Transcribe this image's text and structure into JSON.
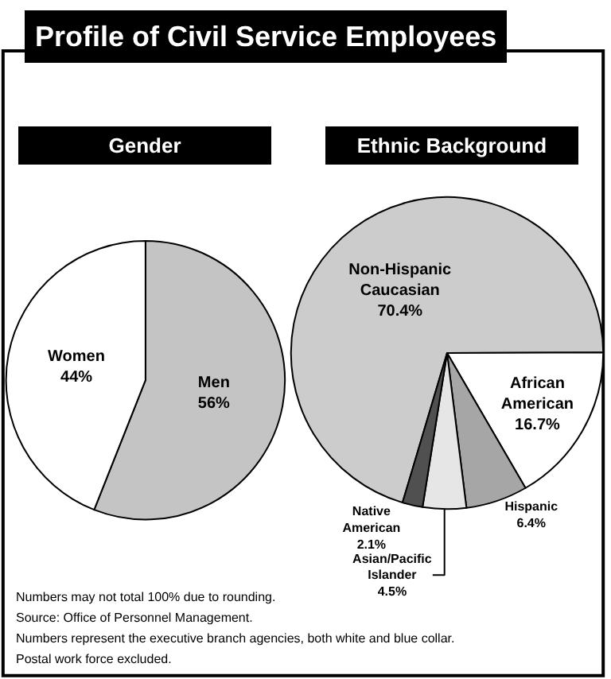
{
  "chart_data": [
    {
      "type": "other",
      "title": "Profile of Civil Service Employees",
      "annotations": [
        "Numbers may not total 100% due to rounding.",
        "Source: Office of Personnel Management.",
        "Numbers represent the executive branch agencies, both white and blue collar.",
        "Postal work force excluded."
      ]
    },
    {
      "type": "pie",
      "title": "Gender",
      "categories": [
        "Men",
        "Women"
      ],
      "values": [
        56,
        44
      ],
      "colors": [
        "#c4c4c4",
        "#ffffff"
      ],
      "value_labels": [
        "56%",
        "44%"
      ]
    },
    {
      "type": "pie",
      "title": "Ethnic Background",
      "categories": [
        "Non-Hispanic Caucasian",
        "African American",
        "Hispanic",
        "Asian/Pacific Islander",
        "Native American"
      ],
      "values": [
        70.4,
        16.7,
        6.4,
        4.5,
        2.1
      ],
      "colors": [
        "#cccccc",
        "#ffffff",
        "#a6a6a6",
        "#e6e6e6",
        "#505050"
      ],
      "value_labels": [
        "70.4%",
        "16.7%",
        "6.4%",
        "4.5%",
        "2.1%"
      ]
    }
  ]
}
